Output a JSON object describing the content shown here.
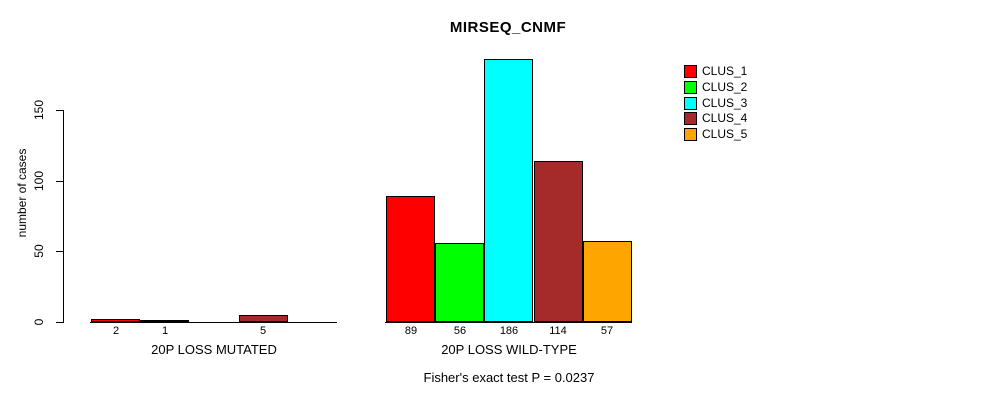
{
  "chart_data": {
    "type": "grouped_bar",
    "title": "MIRSEQ_CNMF",
    "ylabel": "number of cases",
    "yticks": [
      0,
      50,
      100,
      150
    ],
    "ytick_labels": [
      "0",
      "50",
      "100",
      "150"
    ],
    "ylim": [
      0,
      150
    ],
    "grid": false,
    "legend_position": "right-outside",
    "series": [
      {
        "name": "CLUS_1",
        "color": "#FF0000"
      },
      {
        "name": "CLUS_2",
        "color": "#00FF00"
      },
      {
        "name": "CLUS_3",
        "color": "#00FFFF"
      },
      {
        "name": "CLUS_4",
        "color": "#A52A2A"
      },
      {
        "name": "CLUS_5",
        "color": "#FFA500"
      }
    ],
    "groups": [
      {
        "label": "20P LOSS MUTATED",
        "values": [
          2,
          1,
          0,
          5,
          0
        ],
        "bar_labels": [
          "2",
          "1",
          "",
          "5",
          ""
        ]
      },
      {
        "label": "20P LOSS WILD-TYPE",
        "values": [
          89,
          56,
          186,
          114,
          57
        ],
        "bar_labels": [
          "89",
          "56",
          "186",
          "114",
          "57"
        ]
      }
    ],
    "annotation": "Fisher's exact test P = 0.0237"
  }
}
